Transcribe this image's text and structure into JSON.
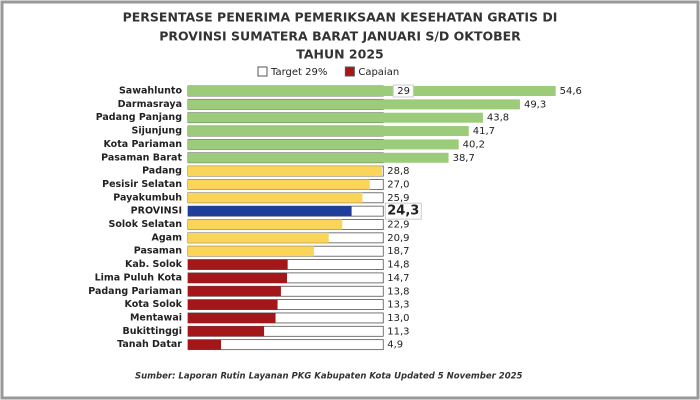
{
  "chart_data": {
    "type": "bar",
    "orientation": "horizontal",
    "title": [
      "PERSENTASE PENERIMA PEMERIKSAAN KESEHATAN GRATIS DI",
      "PROVINSI SUMATERA BARAT JANUARI S/D OKTOBER",
      "TAHUN 2025"
    ],
    "categories": [
      "Sawahlunto",
      "Darmasraya",
      "Padang Panjang",
      "Sijunjung",
      "Kota Pariaman",
      "Pasaman Barat",
      "Padang",
      "Pesisir Selatan",
      "Payakumbuh",
      "PROVINSI",
      "Solok Selatan",
      "Agam",
      "Pasaman",
      "Kab. Solok",
      "Lima Puluh Kota",
      "Padang Pariaman",
      "Kota Solok",
      "Mentawai",
      "Bukittinggi",
      "Tanah Datar"
    ],
    "series": [
      {
        "name": "Target 29%",
        "color": "#ffffff",
        "values": [
          29,
          29,
          29,
          29,
          29,
          29,
          29,
          29,
          29,
          29,
          29,
          29,
          29,
          29,
          29,
          29,
          29,
          29,
          29,
          29
        ],
        "value_labels": [
          "29",
          null,
          null,
          null,
          null,
          null,
          null,
          null,
          null,
          null,
          null,
          null,
          null,
          null,
          null,
          null,
          null,
          null,
          null,
          null
        ]
      },
      {
        "name": "Capaian",
        "color": "#a3161a",
        "values": [
          54.6,
          49.3,
          43.8,
          41.7,
          40.2,
          38.7,
          28.8,
          27.0,
          25.9,
          24.3,
          22.9,
          20.9,
          18.7,
          14.8,
          14.7,
          13.8,
          13.3,
          13.0,
          11.3,
          4.9
        ],
        "value_labels": [
          "54,6",
          "49,3",
          "43,8",
          "41,7",
          "40,2",
          "38,7",
          "28,8",
          "27,0",
          "25,9",
          "24,3",
          "22,9",
          "20,9",
          "18,7",
          "14,8",
          "14,7",
          "13,8",
          "13,3",
          "13,0",
          "11,3",
          "4,9"
        ],
        "colors": [
          "#9ccc7a",
          "#9ccc7a",
          "#9ccc7a",
          "#9ccc7a",
          "#9ccc7a",
          "#9ccc7a",
          "#fbd55a",
          "#fbd55a",
          "#fbd55a",
          "#1f3e9c",
          "#fbd55a",
          "#fbd55a",
          "#fbd55a",
          "#a3161a",
          "#a3161a",
          "#a3161a",
          "#a3161a",
          "#a3161a",
          "#a3161a",
          "#a3161a"
        ]
      }
    ],
    "xlim": [
      0,
      60
    ],
    "source": "Sumber: Laporan Rutin Layanan PKG Kabupaten Kota Updated 5 November 2025"
  }
}
